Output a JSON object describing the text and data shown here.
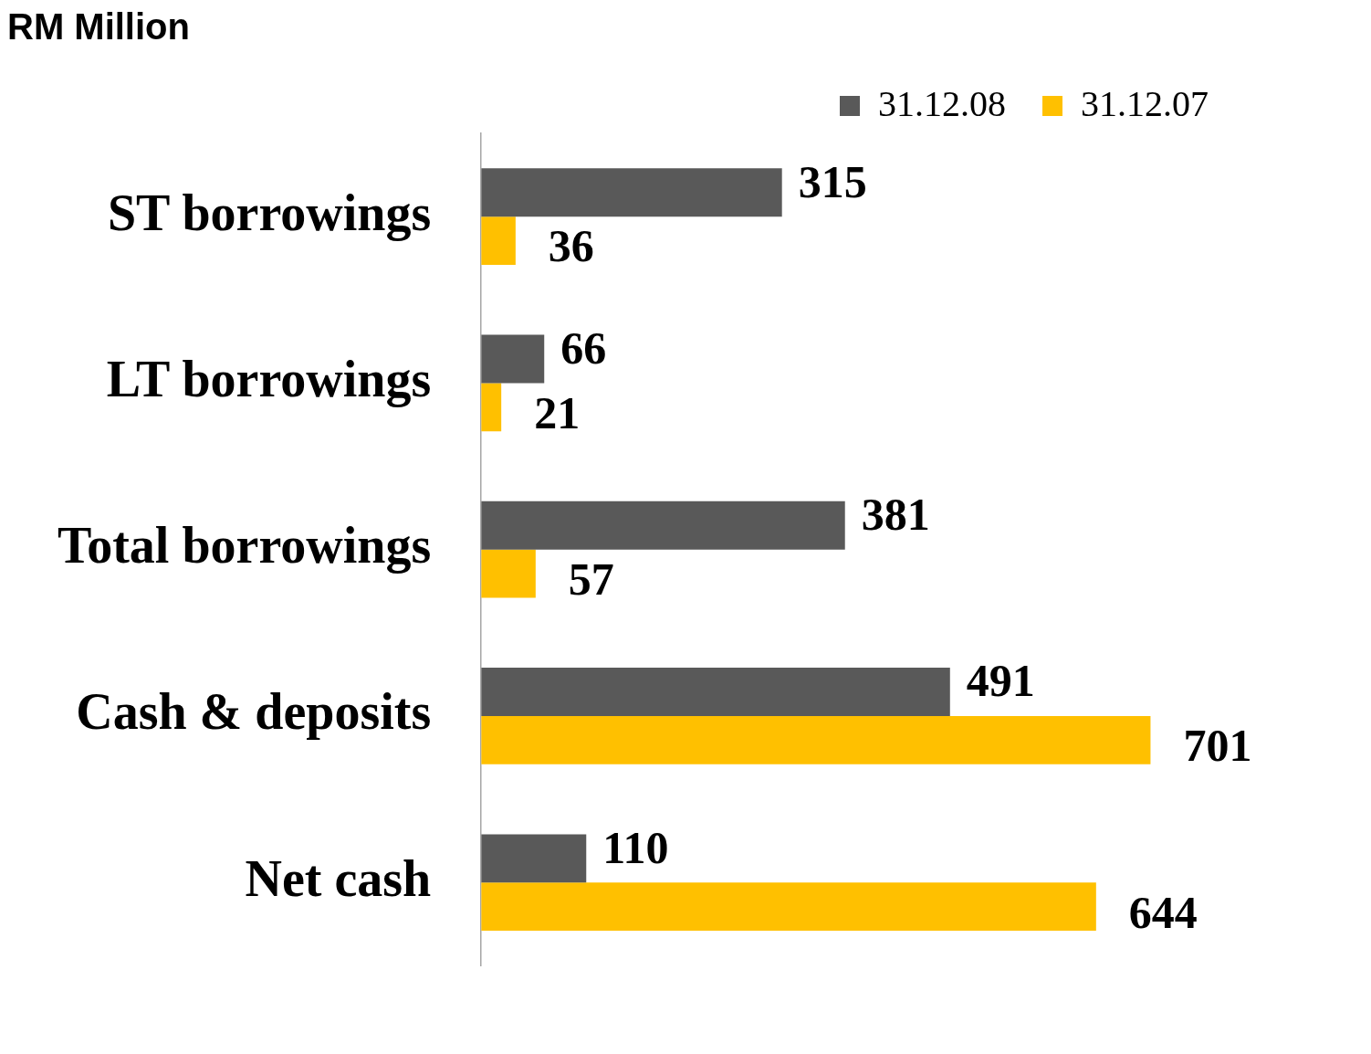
{
  "chart_data": {
    "type": "bar",
    "orientation": "horizontal",
    "title": "RM Million",
    "categories": [
      "ST borrowings",
      "LT borrowings",
      "Total borrowings",
      "Cash & deposits",
      "Net cash"
    ],
    "series": [
      {
        "name": "31.12.08",
        "color": "#595959",
        "values": [
          315,
          66,
          381,
          491,
          110
        ]
      },
      {
        "name": "31.12.07",
        "color": "#ffc000",
        "values": [
          36,
          21,
          57,
          701,
          644
        ]
      }
    ],
    "data_labels": true,
    "legend": "top right",
    "grid": false
  }
}
